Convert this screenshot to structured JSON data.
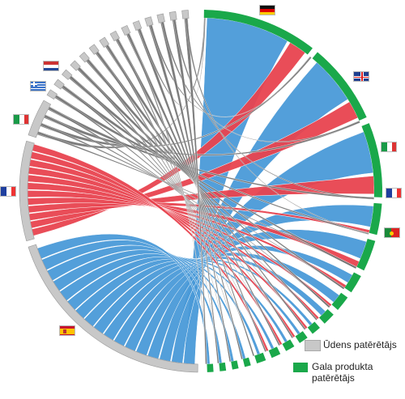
{
  "legend": {
    "water_consumer": {
      "label": "Ūdens patērētājs",
      "color": "#c8c8c8"
    },
    "end_product_consumer": {
      "label": "Gala produkta\npatērētājs",
      "color": "#1aa84a"
    }
  },
  "colors": {
    "spain_flow": "#4a9ad8",
    "france_flow": "#e8434f",
    "other_flow": "#6f6f6f",
    "producer_arc": "#c8c8c8",
    "consumer_arc": "#1aa84a"
  },
  "flags": [
    {
      "country": "Germany",
      "icon": "flag-germany"
    },
    {
      "country": "United Kingdom",
      "icon": "flag-uk"
    },
    {
      "country": "Italy",
      "icon": "flag-italy"
    },
    {
      "country": "France",
      "icon": "flag-france"
    },
    {
      "country": "Portugal",
      "icon": "flag-portugal"
    },
    {
      "country": "Netherlands",
      "icon": "flag-netherlands"
    },
    {
      "country": "Greece",
      "icon": "flag-greece"
    },
    {
      "country": "Italy",
      "icon": "flag-italy"
    },
    {
      "country": "France",
      "icon": "flag-france"
    },
    {
      "country": "Spain",
      "icon": "flag-spain"
    }
  ]
}
